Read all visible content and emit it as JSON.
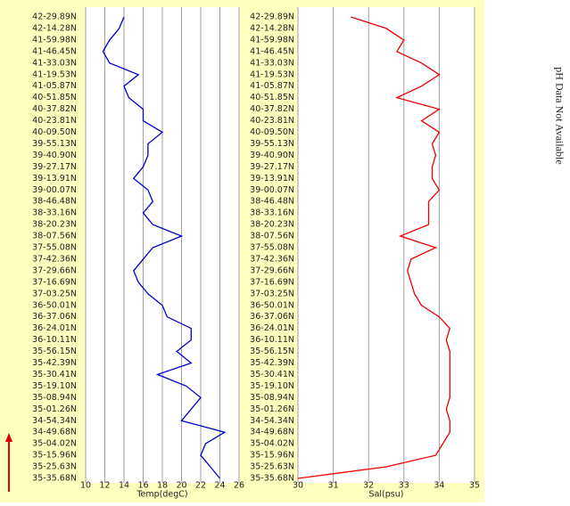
{
  "chart_data": [
    {
      "type": "line",
      "orientation": "horizontal",
      "categories": [
        "42-29.89N",
        "42-14.28N",
        "41-59.98N",
        "41-46.45N",
        "41-33.03N",
        "41-19.53N",
        "41-05.87N",
        "40-51.85N",
        "40-37.82N",
        "40-23.81N",
        "40-09.50N",
        "39-55.13N",
        "39-40.90N",
        "39-27.17N",
        "39-13.91N",
        "39-00.07N",
        "38-46.48N",
        "38-33.16N",
        "38-20.23N",
        "38-07.56N",
        "37-55.08N",
        "37-42.36N",
        "37-29.66N",
        "37-16.69N",
        "37-03.25N",
        "36-50.01N",
        "36-37.06N",
        "36-24.01N",
        "36-10.11N",
        "35-56.15N",
        "35-42.39N",
        "35-30.41N",
        "35-19.10N",
        "35-08.94N",
        "35-01.26N",
        "34-54.34N",
        "34-49.68N",
        "35-04.02N",
        "35-15.96N",
        "35-25.63N",
        "35-35.68N"
      ],
      "values": [
        14,
        13.5,
        12.5,
        11.8,
        12.5,
        15.5,
        14,
        14.5,
        16,
        16,
        18,
        16.5,
        16.5,
        16,
        15,
        16.5,
        17,
        16,
        17,
        20,
        17,
        16,
        15,
        15.5,
        16.5,
        18,
        18.5,
        21,
        21,
        19.5,
        21,
        17.5,
        20.5,
        22,
        21,
        20,
        24.5,
        22.5,
        22,
        23,
        24
      ],
      "color": "#0000cc",
      "xlim": [
        10,
        26
      ],
      "xticks": [
        10,
        12,
        14,
        16,
        18,
        20,
        22,
        24,
        26
      ],
      "xlabel": "Temp(degC)",
      "grid": true
    },
    {
      "type": "line",
      "orientation": "horizontal",
      "categories": [
        "42-29.89N",
        "42-14.28N",
        "41-59.98N",
        "41-46.45N",
        "41-33.03N",
        "41-19.53N",
        "41-05.87N",
        "40-51.85N",
        "40-37.82N",
        "40-23.81N",
        "40-09.50N",
        "39-55.13N",
        "39-40.90N",
        "39-27.17N",
        "39-13.91N",
        "39-00.07N",
        "38-46.48N",
        "38-33.16N",
        "38-20.23N",
        "38-07.56N",
        "37-55.08N",
        "37-42.36N",
        "37-29.66N",
        "37-16.69N",
        "37-03.25N",
        "36-50.01N",
        "36-37.06N",
        "36-24.01N",
        "36-10.11N",
        "35-56.15N",
        "35-42.39N",
        "35-30.41N",
        "35-19.10N",
        "35-08.94N",
        "35-01.26N",
        "34-54.34N",
        "34-49.68N",
        "35-04.02N",
        "35-15.96N",
        "35-25.63N",
        "35-35.68N"
      ],
      "values": [
        31.5,
        32.5,
        33,
        32.8,
        33.5,
        34,
        33.5,
        32.8,
        34,
        33.5,
        34,
        33.8,
        33.9,
        33.8,
        33.8,
        34,
        33.7,
        33.7,
        33.7,
        32.9,
        33.9,
        33.2,
        33.1,
        33.2,
        33.3,
        33.5,
        34,
        34.3,
        34.2,
        34.3,
        34.3,
        34.3,
        34.3,
        34.3,
        34.2,
        34.3,
        34.3,
        34.1,
        33.9,
        32.5,
        30
      ],
      "color": "#ee0000",
      "xlim": [
        30,
        35
      ],
      "xticks": [
        30,
        31,
        32,
        33,
        34,
        35
      ],
      "xlabel": "Sal(psu)",
      "grid": true
    }
  ],
  "annotation": "pH Data Not Available"
}
